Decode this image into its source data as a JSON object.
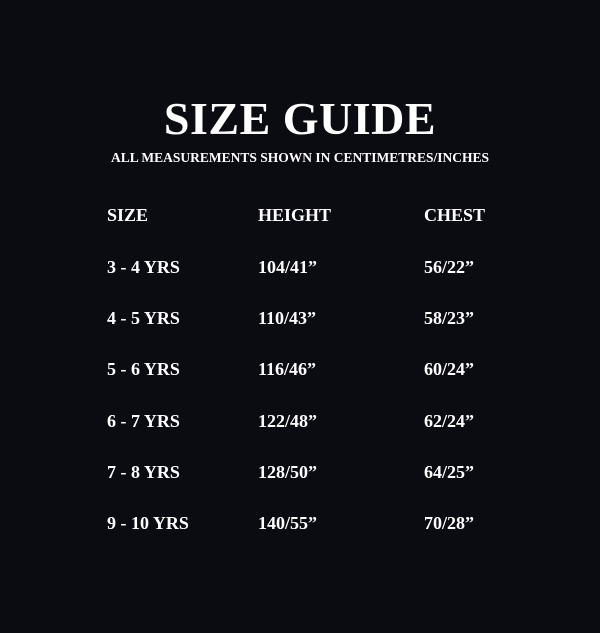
{
  "title": "SIZE GUIDE",
  "subtitle": "ALL MEASUREMENTS SHOWN IN CENTIMETRES/INCHES",
  "headers": [
    "SIZE",
    "HEIGHT",
    "CHEST"
  ],
  "rows": [
    [
      "3 - 4 YRS",
      "104/41”",
      "56/22”"
    ],
    [
      "4 - 5 YRS",
      "110/43”",
      "58/23”"
    ],
    [
      "5 - 6 YRS",
      "116/46”",
      "60/24”"
    ],
    [
      "6 - 7 YRS",
      "122/48”",
      "62/24”"
    ],
    [
      "7 - 8 YRS",
      "128/50”",
      "64/25”"
    ],
    [
      "9 - 10 YRS",
      "140/55”",
      "70/28”"
    ]
  ]
}
